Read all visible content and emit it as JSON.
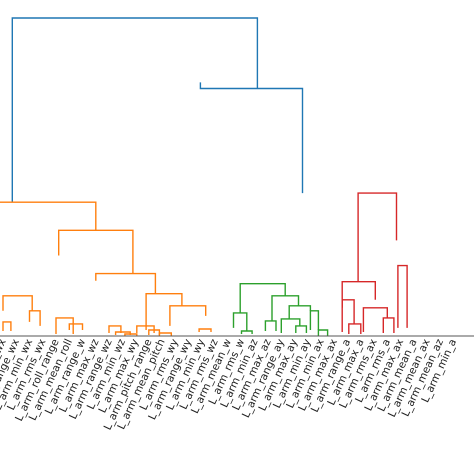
{
  "chart_data": {
    "type": "dendrogram",
    "title": "",
    "xlabel": "",
    "ylabel": "",
    "colors": {
      "root": "#1f77b4",
      "orange": "#ff7f0e",
      "green": "#2ca02c",
      "red": "#d62728",
      "axis": "#555555"
    },
    "ylim": [
      0,
      320
    ],
    "leaves": [
      "L_arm_max_wx",
      "L_arm_range_wx",
      "L_arm_min_wx",
      "L_arm_rms_wx",
      "L_arm_roll_range",
      "L_arm_mean_roll",
      "L_arm_range_w",
      "L_arm_max_wz",
      "L_arm_range_wz",
      "L_arm_min_wz",
      "L_arm_max_wy",
      "L_arm_pitch_range",
      "L_arm_mean_pitch",
      "L_arm_rms_wy",
      "L_arm_range_wy",
      "L_arm_min_wy",
      "L_arm_rms_wz",
      "L_arm_mean_w",
      "L_arm_rms_w",
      "L_arm_min_az",
      "L_arm_max_az",
      "L_arm_range_ay",
      "L_arm_max_ay",
      "L_arm_min_ay",
      "L_arm_min_ax",
      "L_arm_max_ax",
      "L_arm_range_a",
      "L_arm_max_a",
      "L_arm_rms_ax",
      "L_arm_rms_a",
      "L_arm_max_ax",
      "L_arm_mean_a",
      "L_arm_mean_ax",
      "L_arm_mean_az",
      "L_arm_min_a"
    ],
    "links": [
      {
        "color": "root",
        "x": [
          0.7,
          0.7,
          19.2,
          19.2
        ],
        "y": [
          133,
          316,
          316,
          246
        ]
      },
      {
        "color": "root",
        "x": [
          14.9,
          14.9,
          22.6,
          22.6
        ],
        "y": [
          252,
          246,
          246,
          142
        ]
      },
      {
        "color": "orange",
        "x": [
          -0.5,
          -0.5,
          7.0,
          7.0
        ],
        "y": [
          110,
          133,
          133,
          105
        ]
      },
      {
        "color": "orange",
        "x": [
          4.2,
          4.2,
          9.8,
          9.8
        ],
        "y": [
          80,
          105,
          105,
          62
        ]
      },
      {
        "color": "orange",
        "x": [
          0.0,
          0.0,
          2.2,
          2.2
        ],
        "y": [
          25,
          40,
          40,
          25
        ]
      },
      {
        "color": "orange",
        "x": [
          2.0,
          2.0,
          2.8,
          2.8
        ],
        "y": [
          14,
          25,
          25,
          10
        ]
      },
      {
        "color": "orange",
        "x": [
          0.0,
          0.0,
          0.6,
          0.6
        ],
        "y": [
          5,
          14,
          14,
          5
        ]
      },
      {
        "color": "orange",
        "x": [
          4.0,
          4.0,
          5.3,
          5.3
        ],
        "y": [
          2,
          18,
          18,
          2
        ]
      },
      {
        "color": "orange",
        "x": [
          5.0,
          5.0,
          6.0,
          6.0
        ],
        "y": [
          6,
          12,
          12,
          6
        ]
      },
      {
        "color": "orange",
        "x": [
          7.0,
          7.0,
          11.5,
          11.5
        ],
        "y": [
          55,
          62,
          62,
          42
        ]
      },
      {
        "color": "orange",
        "x": [
          8.0,
          8.0,
          8.9,
          8.9
        ],
        "y": [
          3,
          10,
          10,
          3
        ]
      },
      {
        "color": "orange",
        "x": [
          8.5,
          8.5,
          9.6,
          9.6
        ],
        "y": [
          1,
          4,
          4,
          1
        ]
      },
      {
        "color": "orange",
        "x": [
          9.2,
          9.2,
          10.1,
          10.1
        ],
        "y": [
          0.5,
          2,
          2,
          0.5
        ]
      },
      {
        "color": "orange",
        "x": [
          10.8,
          10.8,
          13.5,
          13.5
        ],
        "y": [
          6,
          42,
          42,
          30
        ]
      },
      {
        "color": "orange",
        "x": [
          10.1,
          10.1,
          11.4,
          11.4
        ],
        "y": [
          3,
          10,
          10,
          3
        ]
      },
      {
        "color": "orange",
        "x": [
          11.0,
          11.0,
          11.8,
          11.8
        ],
        "y": [
          1,
          6,
          6,
          1
        ]
      },
      {
        "color": "orange",
        "x": [
          11.8,
          11.8,
          12.7,
          12.7
        ],
        "y": [
          0.5,
          3,
          3,
          0.5
        ]
      },
      {
        "color": "orange",
        "x": [
          12.6,
          12.6,
          15.3,
          15.3
        ],
        "y": [
          10,
          30,
          30,
          20
        ]
      },
      {
        "color": "orange",
        "x": [
          14.8,
          14.8,
          15.7,
          15.7
        ],
        "y": [
          4,
          7,
          7,
          4
        ]
      },
      {
        "color": "green",
        "x": [
          17.9,
          17.9,
          21.3,
          21.3
        ],
        "y": [
          23,
          52,
          52,
          40
        ]
      },
      {
        "color": "green",
        "x": [
          17.4,
          17.4,
          18.4,
          18.4
        ],
        "y": [
          8,
          23,
          23,
          5
        ]
      },
      {
        "color": "green",
        "x": [
          18.0,
          18.0,
          18.8,
          18.8
        ],
        "y": [
          2,
          5,
          5,
          2
        ]
      },
      {
        "color": "green",
        "x": [
          20.3,
          20.3,
          22.3,
          22.3
        ],
        "y": [
          15,
          40,
          40,
          30
        ]
      },
      {
        "color": "green",
        "x": [
          19.8,
          19.8,
          20.6,
          20.6
        ],
        "y": [
          5,
          15,
          15,
          5
        ]
      },
      {
        "color": "green",
        "x": [
          21.6,
          21.6,
          23.2,
          23.2
        ],
        "y": [
          17,
          30,
          30,
          25
        ]
      },
      {
        "color": "green",
        "x": [
          21.0,
          21.0,
          22.4,
          22.4
        ],
        "y": [
          3,
          17,
          17,
          10
        ]
      },
      {
        "color": "green",
        "x": [
          22.1,
          22.1,
          22.9,
          22.9
        ],
        "y": [
          3,
          10,
          10,
          3
        ]
      },
      {
        "color": "green",
        "x": [
          23.2,
          23.2,
          23.8,
          23.8
        ],
        "y": [
          6,
          25,
          25,
          6
        ]
      },
      {
        "color": "green",
        "x": [
          23.8,
          23.8,
          24.5,
          24.5
        ],
        "y": [
          0.5,
          6,
          6,
          0.5
        ]
      },
      {
        "color": "red",
        "x": [
          26.8,
          26.8,
          29.7,
          29.7
        ],
        "y": [
          54,
          142,
          142,
          95
        ]
      },
      {
        "color": "red",
        "x": [
          25.6,
          25.6,
          28.1,
          28.1
        ],
        "y": [
          28,
          54,
          54,
          36
        ]
      },
      {
        "color": "red",
        "x": [
          25.6,
          25.6,
          26.5,
          26.5
        ],
        "y": [
          4,
          36,
          36,
          12
        ]
      },
      {
        "color": "red",
        "x": [
          26.1,
          26.1,
          27.0,
          27.0
        ],
        "y": [
          2,
          12,
          12,
          2
        ]
      },
      {
        "color": "red",
        "x": [
          27.2,
          27.2,
          29.0,
          29.0
        ],
        "y": [
          4,
          28,
          28,
          18
        ]
      },
      {
        "color": "red",
        "x": [
          28.7,
          28.7,
          29.5,
          29.5
        ],
        "y": [
          3,
          18,
          18,
          3
        ]
      },
      {
        "color": "red",
        "x": [
          29.8,
          29.8,
          30.5,
          30.5
        ],
        "y": [
          8,
          70,
          70,
          8
        ]
      }
    ]
  }
}
